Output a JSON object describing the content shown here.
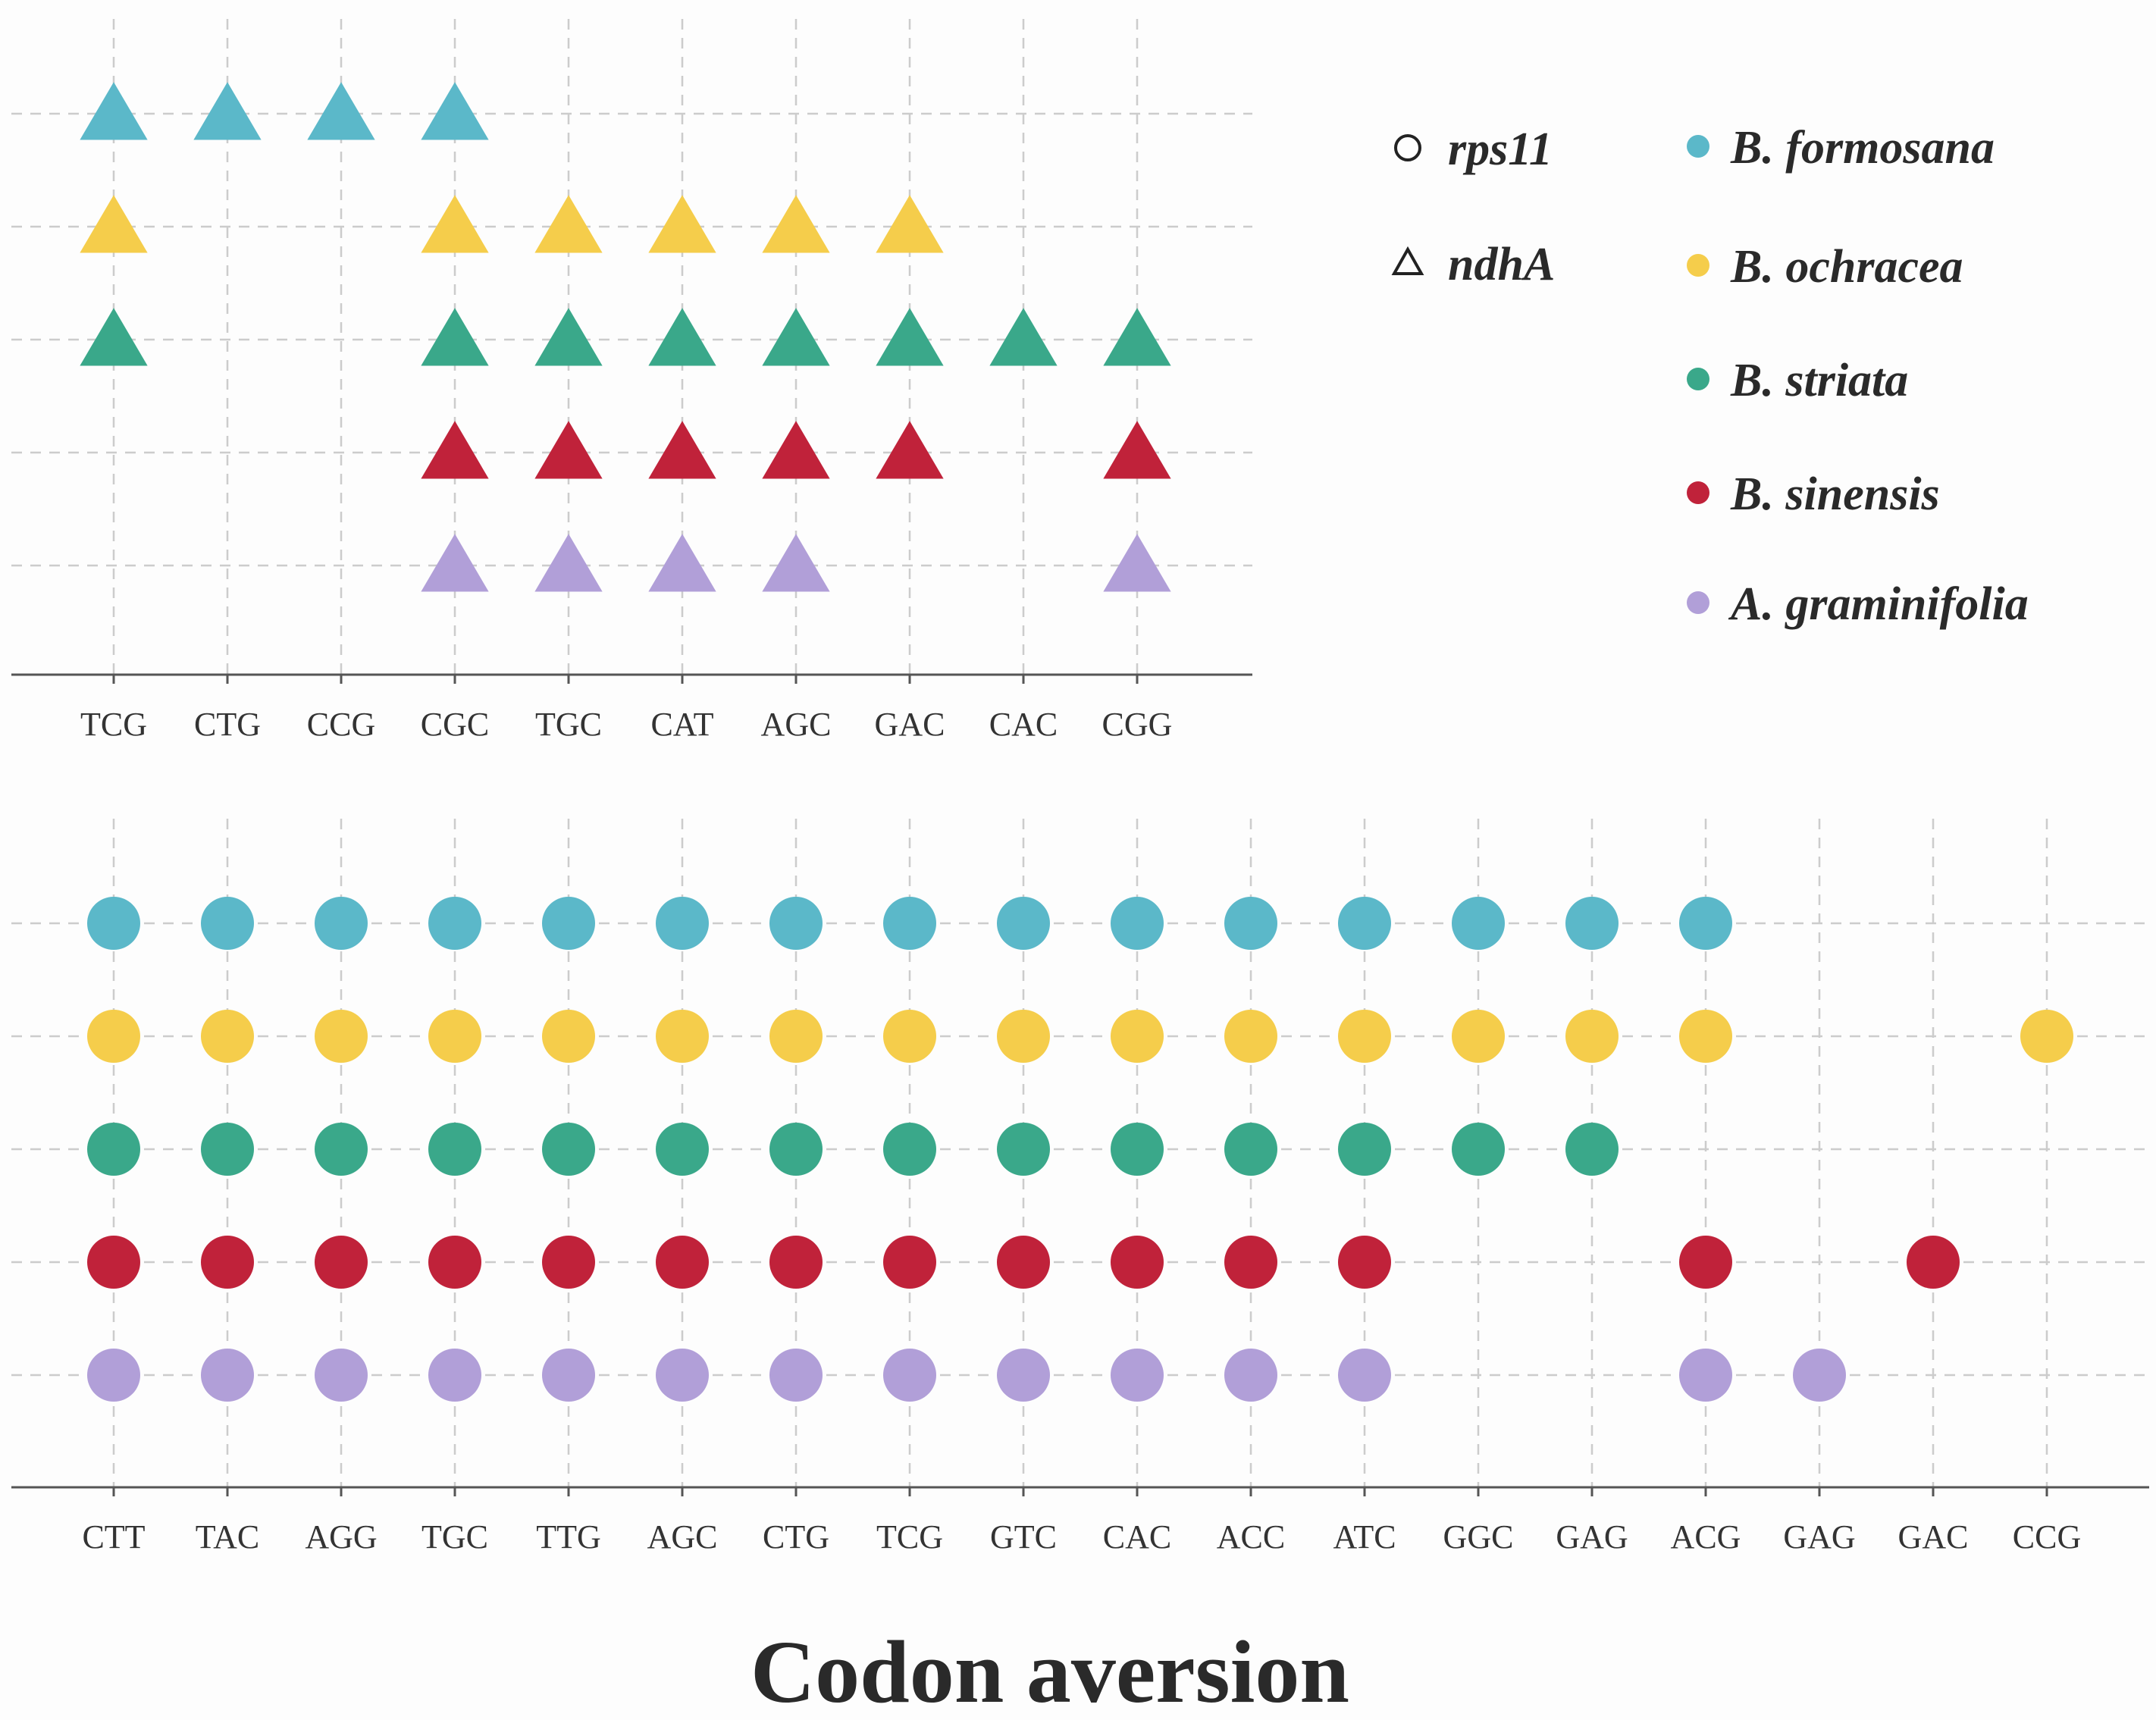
{
  "chart_data": [
    {
      "type": "scatter",
      "marker": "triangle",
      "gene": "ndhA",
      "categories": [
        "TCG",
        "CTG",
        "CCG",
        "CGC",
        "TGC",
        "CAT",
        "AGC",
        "GAC",
        "CAC",
        "CGG"
      ],
      "rows": [
        {
          "species": "B. formosana",
          "present": [
            "TCG",
            "CTG",
            "CCG",
            "CGC"
          ]
        },
        {
          "species": "B. ochracea",
          "present": [
            "TCG",
            "CGC",
            "TGC",
            "CAT",
            "AGC",
            "GAC"
          ]
        },
        {
          "species": "B. striata",
          "present": [
            "TCG",
            "CGC",
            "TGC",
            "CAT",
            "AGC",
            "GAC",
            "CAC",
            "CGG"
          ]
        },
        {
          "species": "B. sinensis",
          "present": [
            "CGC",
            "TGC",
            "CAT",
            "AGC",
            "GAC",
            "CGG"
          ]
        },
        {
          "species": "A. graminifolia",
          "present": [
            "CGC",
            "TGC",
            "CAT",
            "AGC",
            "CGG"
          ]
        }
      ],
      "grid": true
    },
    {
      "type": "scatter",
      "marker": "circle",
      "gene": "rps11",
      "categories": [
        "CTT",
        "TAC",
        "AGG",
        "TGC",
        "TTG",
        "AGC",
        "CTG",
        "TCG",
        "GTC",
        "CAC",
        "ACC",
        "ATC",
        "GGC",
        "GAG",
        "ACG",
        "GAG",
        "GAC",
        "CCG"
      ],
      "rows": [
        {
          "species": "B. formosana",
          "present_index": [
            0,
            1,
            2,
            3,
            4,
            5,
            6,
            7,
            8,
            9,
            10,
            11,
            12,
            13,
            14
          ]
        },
        {
          "species": "B. ochracea",
          "present_index": [
            0,
            1,
            2,
            3,
            4,
            5,
            6,
            7,
            8,
            9,
            10,
            11,
            12,
            13,
            14,
            17
          ]
        },
        {
          "species": "B. striata",
          "present_index": [
            0,
            1,
            2,
            3,
            4,
            5,
            6,
            7,
            8,
            9,
            10,
            11,
            12,
            13
          ]
        },
        {
          "species": "B. sinensis",
          "present_index": [
            0,
            1,
            2,
            3,
            4,
            5,
            6,
            7,
            8,
            9,
            10,
            11,
            14,
            16
          ]
        },
        {
          "species": "A. graminifolia",
          "present_index": [
            0,
            1,
            2,
            3,
            4,
            5,
            6,
            7,
            8,
            9,
            10,
            11,
            14,
            15
          ]
        }
      ],
      "grid": true
    }
  ],
  "legend": {
    "placement": "top-right",
    "shapes": [
      {
        "label": "rps11",
        "shape": "circle"
      },
      {
        "label": "ndhA",
        "shape": "triangle"
      }
    ],
    "species": [
      {
        "label": "B. formosana",
        "color": "#5bb8c9"
      },
      {
        "label": "B. ochracea",
        "color": "#f5cd4b"
      },
      {
        "label": "B. striata",
        "color": "#3aa88a"
      },
      {
        "label": "B. sinensis",
        "color": "#c0223a"
      },
      {
        "label": "A. graminifolia",
        "color": "#b19fd8"
      }
    ]
  },
  "title": "Codon aversion"
}
